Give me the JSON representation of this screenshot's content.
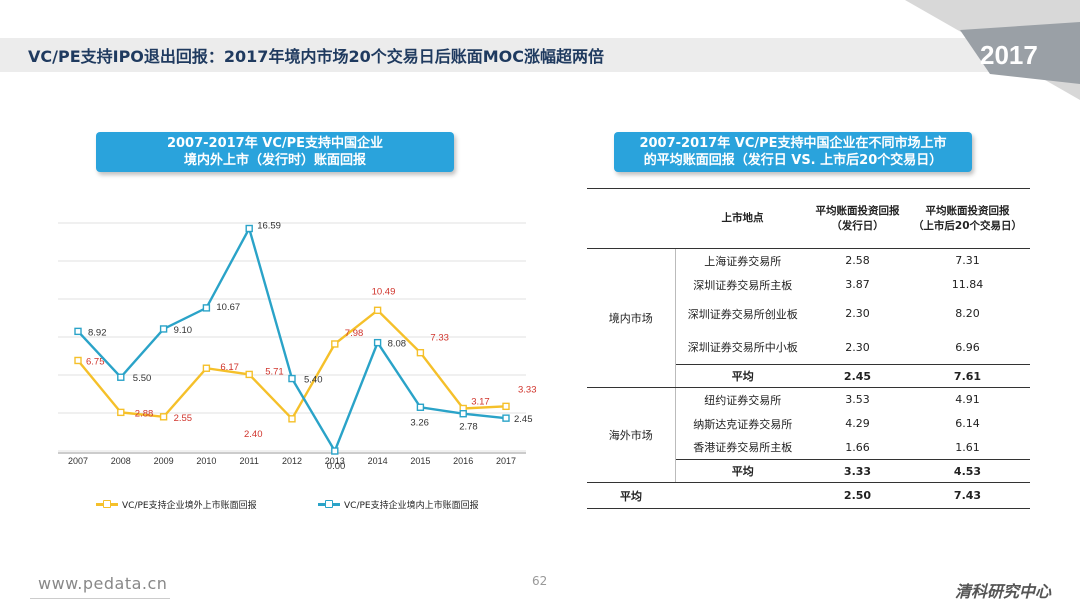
{
  "header": {
    "title": "VC/PE支持IPO退出回报：2017年境内市场20个交易日后账面MOC涨幅超两倍",
    "year_badge": "2017"
  },
  "left_panel": {
    "title_line1": "2007-2017年 VC/PE支持中国企业",
    "title_line2": "境内外上市（发行时）账面回报"
  },
  "right_panel": {
    "title_line1": "2007-2017年 VC/PE支持中国企业在不同市场上市",
    "title_line2": "的平均账面回报（发行日 VS. 上市后20个交易日）"
  },
  "chart_data": {
    "type": "line",
    "x": [
      "2007",
      "2008",
      "2009",
      "2010",
      "2011",
      "2012",
      "2013",
      "2014",
      "2015",
      "2016",
      "2017"
    ],
    "series": [
      {
        "name": "VC/PE支持企业境外上市账面回报",
        "color": "#f5c02a",
        "values": [
          6.75,
          2.88,
          2.55,
          6.17,
          5.71,
          2.4,
          7.98,
          10.49,
          7.33,
          3.17,
          3.33
        ]
      },
      {
        "name": "VC/PE支持企业境内上市账面回报",
        "color": "#2aa3c8",
        "values": [
          8.92,
          5.5,
          9.1,
          10.67,
          16.59,
          5.4,
          0.0,
          8.08,
          3.26,
          2.78,
          2.45
        ]
      }
    ],
    "labels_overseas": [
      "6.75",
      "2.88",
      "2.55",
      "6.17",
      "5.71",
      "2.40",
      "7.98",
      "10.49",
      "7.33",
      "3.17",
      "3.33"
    ],
    "labels_domestic": [
      "8.92",
      "5.50",
      "9.10",
      "10.67",
      "16.59",
      "5.40",
      "0.00",
      "8.08",
      "3.26",
      "2.78",
      "2.45"
    ],
    "ylim": [
      0,
      17
    ],
    "grid": "horizontal",
    "legend": "bottom"
  },
  "table": {
    "headers": {
      "location": "上市地点",
      "issue_line1": "平均账面投资回报",
      "issue_line2": "（发行日）",
      "after_line1": "平均账面投资回报",
      "after_line2": "（上市后20个交易日）"
    },
    "domestic": {
      "label": "境内市场",
      "rows": [
        {
          "market": "上海证券交易所",
          "issue": "2.58",
          "after": "7.31"
        },
        {
          "market": "深圳证券交易所主板",
          "issue": "3.87",
          "after": "11.84"
        },
        {
          "market": "深圳证券交易所创业板",
          "issue": "2.30",
          "after": "8.20"
        },
        {
          "market": "深圳证券交易所中小板",
          "issue": "2.30",
          "after": "6.96"
        }
      ],
      "avg": {
        "label": "平均",
        "issue": "2.45",
        "after": "7.61"
      }
    },
    "overseas": {
      "label": "海外市场",
      "rows": [
        {
          "market": "纽约证券交易所",
          "issue": "3.53",
          "after": "4.91"
        },
        {
          "market": "纳斯达克证券交易所",
          "issue": "4.29",
          "after": "6.14"
        },
        {
          "market": "香港证券交易所主板",
          "issue": "1.66",
          "after": "1.61"
        }
      ],
      "avg": {
        "label": "平均",
        "issue": "3.33",
        "after": "4.53"
      }
    },
    "grand": {
      "label": "平均",
      "issue": "2.50",
      "after": "7.43"
    }
  },
  "footer": {
    "url": "www.pedata.cn",
    "page_number": "62",
    "brand": "清科研究中心"
  }
}
